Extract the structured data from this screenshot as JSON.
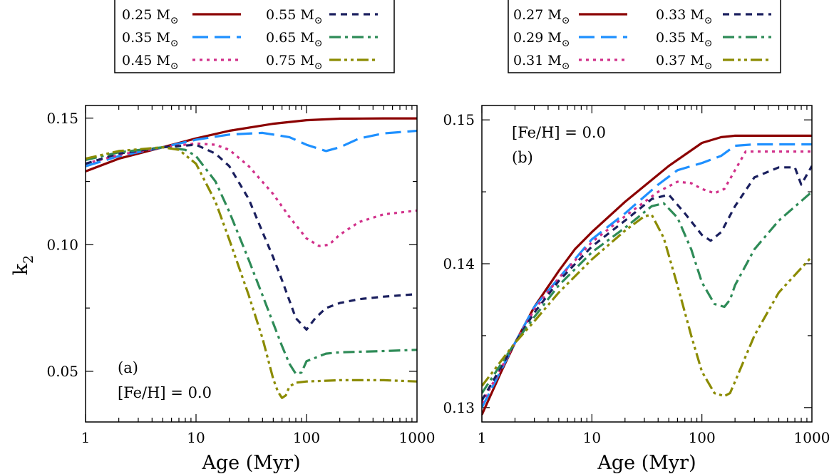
{
  "colors": {
    "dark_red": "#8b0000",
    "sky_blue": "#1e90ff",
    "magenta": "#d1308a",
    "navy": "#1a1f5e",
    "green": "#2e8b57",
    "olive": "#8b8b00"
  },
  "chart_data": [
    {
      "id": "a",
      "type": "line",
      "x_scale": "log",
      "xlabel": "Age (Myr)",
      "ylabel": "k",
      "ylabel_subscript": "2",
      "xlim": [
        1,
        1000
      ],
      "ylim": [
        0.03,
        0.155
      ],
      "x_ticks": [
        "1",
        "10",
        "100",
        "1000"
      ],
      "y_ticks": [
        "0.05",
        "0.10",
        "0.15"
      ],
      "y_tick_values": [
        0.05,
        0.1,
        0.15
      ],
      "panel_label": "(a)",
      "metallicity_label": "[Fe/H] = 0.0",
      "legend": {
        "suffix": "M",
        "entries": [
          {
            "mass": "0.25",
            "color_key": "dark_red",
            "dash": "solid"
          },
          {
            "mass": "0.55",
            "color_key": "navy",
            "dash": "short"
          },
          {
            "mass": "0.35",
            "color_key": "sky_blue",
            "dash": "long"
          },
          {
            "mass": "0.65",
            "color_key": "green",
            "dash": "dashdot"
          },
          {
            "mass": "0.45",
            "color_key": "magenta",
            "dash": "dot"
          },
          {
            "mass": "0.75",
            "color_key": "olive",
            "dash": "dashdotdot"
          }
        ]
      },
      "series": [
        {
          "name": "0.25 M☉",
          "color_key": "dark_red",
          "dash": "solid",
          "x": [
            1,
            2,
            5,
            10,
            20,
            50,
            100,
            200,
            500,
            1000
          ],
          "y": [
            0.129,
            0.134,
            0.1385,
            0.142,
            0.145,
            0.1478,
            0.1492,
            0.1498,
            0.1499,
            0.1499
          ]
        },
        {
          "name": "0.35 M☉",
          "color_key": "sky_blue",
          "dash": "long",
          "x": [
            1,
            2,
            5,
            10,
            20,
            40,
            70,
            100,
            150,
            200,
            300,
            500,
            1000
          ],
          "y": [
            0.131,
            0.135,
            0.1385,
            0.1415,
            0.1435,
            0.1442,
            0.1425,
            0.1395,
            0.137,
            0.1385,
            0.142,
            0.144,
            0.145
          ]
        },
        {
          "name": "0.45 M☉",
          "color_key": "magenta",
          "dash": "dot",
          "x": [
            1,
            2,
            5,
            10,
            15,
            20,
            30,
            50,
            70,
            100,
            130,
            160,
            200,
            300,
            500,
            1000
          ],
          "y": [
            0.132,
            0.1355,
            0.1385,
            0.14,
            0.1395,
            0.1375,
            0.131,
            0.12,
            0.111,
            0.1025,
            0.0995,
            0.1,
            0.104,
            0.109,
            0.112,
            0.1135
          ]
        },
        {
          "name": "0.55 M☉",
          "color_key": "navy",
          "dash": "short",
          "x": [
            1,
            2,
            5,
            10,
            15,
            20,
            30,
            40,
            50,
            60,
            70,
            80,
            100,
            120,
            150,
            200,
            300,
            500,
            1000
          ],
          "y": [
            0.132,
            0.136,
            0.1385,
            0.1395,
            0.136,
            0.131,
            0.118,
            0.105,
            0.095,
            0.086,
            0.078,
            0.071,
            0.0665,
            0.071,
            0.075,
            0.077,
            0.0785,
            0.0795,
            0.0805
          ]
        },
        {
          "name": "0.65 M☉",
          "color_key": "green",
          "dash": "dashdot",
          "x": [
            1,
            2,
            5,
            8,
            10,
            15,
            20,
            30,
            40,
            50,
            60,
            70,
            80,
            90,
            100,
            150,
            200,
            500,
            1000
          ],
          "y": [
            0.1335,
            0.1365,
            0.1385,
            0.1375,
            0.135,
            0.125,
            0.113,
            0.094,
            0.08,
            0.069,
            0.06,
            0.053,
            0.049,
            0.0495,
            0.054,
            0.057,
            0.0575,
            0.058,
            0.0585
          ]
        },
        {
          "name": "0.75 M☉",
          "color_key": "olive",
          "dash": "dashdotdot",
          "x": [
            1,
            2,
            5,
            7,
            10,
            15,
            20,
            30,
            40,
            50,
            55,
            60,
            65,
            70,
            80,
            100,
            200,
            500,
            1000
          ],
          "y": [
            0.134,
            0.137,
            0.1385,
            0.1375,
            0.132,
            0.117,
            0.102,
            0.08,
            0.063,
            0.047,
            0.042,
            0.0395,
            0.0405,
            0.044,
            0.0455,
            0.046,
            0.0465,
            0.0465,
            0.046
          ]
        }
      ]
    },
    {
      "id": "b",
      "type": "line",
      "x_scale": "log",
      "xlabel": "Age (Myr)",
      "ylabel": "",
      "xlim": [
        1,
        1000
      ],
      "ylim": [
        0.129,
        0.151
      ],
      "x_ticks": [
        "1",
        "10",
        "100",
        "1000"
      ],
      "y_ticks": [
        "0.13",
        "0.14",
        "0.15"
      ],
      "y_tick_values": [
        0.13,
        0.14,
        0.15
      ],
      "panel_label": "(b)",
      "metallicity_label": "[Fe/H] = 0.0",
      "legend": {
        "suffix": "M",
        "entries": [
          {
            "mass": "0.27",
            "color_key": "dark_red",
            "dash": "solid"
          },
          {
            "mass": "0.33",
            "color_key": "navy",
            "dash": "short"
          },
          {
            "mass": "0.29",
            "color_key": "sky_blue",
            "dash": "long"
          },
          {
            "mass": "0.35",
            "color_key": "green",
            "dash": "dashdot"
          },
          {
            "mass": "0.31",
            "color_key": "magenta",
            "dash": "dot"
          },
          {
            "mass": "0.37",
            "color_key": "olive",
            "dash": "dashdotdot"
          }
        ]
      },
      "series": [
        {
          "name": "0.27 M☉",
          "color_key": "dark_red",
          "dash": "solid",
          "x": [
            1,
            1.5,
            2,
            3,
            5,
            7,
            10,
            20,
            50,
            100,
            150,
            200,
            300,
            1000
          ],
          "y": [
            0.1295,
            0.1325,
            0.1345,
            0.137,
            0.1395,
            0.141,
            0.1422,
            0.1443,
            0.1468,
            0.1484,
            0.1488,
            0.1489,
            0.1489,
            0.1489
          ]
        },
        {
          "name": "0.29 M☉",
          "color_key": "sky_blue",
          "dash": "long",
          "x": [
            1,
            2,
            3,
            5,
            10,
            20,
            40,
            60,
            100,
            150,
            200,
            300,
            1000
          ],
          "y": [
            0.13,
            0.1345,
            0.137,
            0.139,
            0.1417,
            0.1435,
            0.1455,
            0.1465,
            0.147,
            0.1475,
            0.1482,
            0.1483,
            0.1483
          ]
        },
        {
          "name": "0.31 M☉",
          "color_key": "magenta",
          "dash": "dot",
          "x": [
            1,
            2,
            3,
            5,
            10,
            20,
            40,
            60,
            80,
            100,
            130,
            160,
            200,
            250,
            1000
          ],
          "y": [
            0.1303,
            0.1345,
            0.1368,
            0.139,
            0.1415,
            0.1433,
            0.145,
            0.1457,
            0.1456,
            0.1452,
            0.1449,
            0.1452,
            0.1465,
            0.1478,
            0.1478
          ]
        },
        {
          "name": "0.33 M☉",
          "color_key": "navy",
          "dash": "short",
          "x": [
            1,
            2,
            3,
            5,
            10,
            20,
            35,
            50,
            70,
            100,
            120,
            150,
            200,
            300,
            500,
            700,
            800,
            1000
          ],
          "y": [
            0.1305,
            0.1345,
            0.1366,
            0.1388,
            0.1412,
            0.143,
            0.1445,
            0.1448,
            0.1435,
            0.142,
            0.1416,
            0.1422,
            0.144,
            0.146,
            0.1467,
            0.1467,
            0.1455,
            0.1468
          ]
        },
        {
          "name": "0.35 M☉",
          "color_key": "green",
          "dash": "dashdot",
          "x": [
            1,
            2,
            3,
            5,
            10,
            20,
            35,
            45,
            60,
            80,
            100,
            130,
            160,
            180,
            200,
            300,
            500,
            1000
          ],
          "y": [
            0.131,
            0.1345,
            0.1363,
            0.1385,
            0.1408,
            0.1425,
            0.144,
            0.1442,
            0.1432,
            0.141,
            0.1387,
            0.1372,
            0.137,
            0.1375,
            0.1385,
            0.141,
            0.143,
            0.145
          ]
        },
        {
          "name": "0.37 M☉",
          "color_key": "olive",
          "dash": "dashdotdot",
          "x": [
            1,
            2,
            3,
            5,
            10,
            20,
            30,
            35,
            45,
            60,
            80,
            100,
            130,
            160,
            180,
            200,
            300,
            500,
            1000
          ],
          "y": [
            0.1315,
            0.1345,
            0.136,
            0.138,
            0.1403,
            0.1423,
            0.1433,
            0.1434,
            0.1418,
            0.1385,
            0.135,
            0.1325,
            0.131,
            0.1308,
            0.131,
            0.1318,
            0.135,
            0.138,
            0.1405
          ]
        }
      ]
    }
  ]
}
